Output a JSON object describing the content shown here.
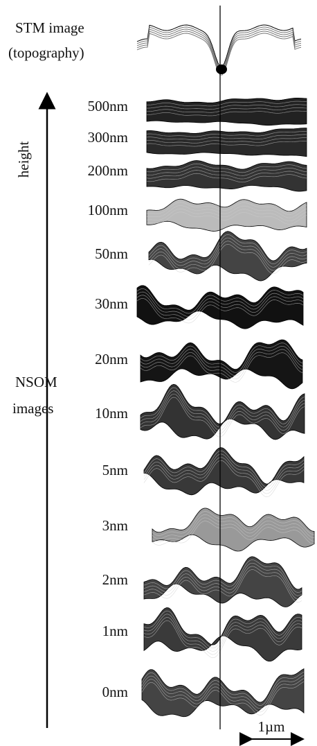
{
  "header": {
    "title": "STM image",
    "subtitle": "(topography)"
  },
  "axis_label": "height",
  "group_label": [
    "NSOM",
    "images"
  ],
  "heights": [
    "500nm",
    "300nm",
    "200nm",
    "100nm",
    "50nm",
    "30nm",
    "20nm",
    "10nm",
    "5nm",
    "3nm",
    "2nm",
    "1nm",
    "0nm"
  ],
  "scale_bar": "1µm"
}
